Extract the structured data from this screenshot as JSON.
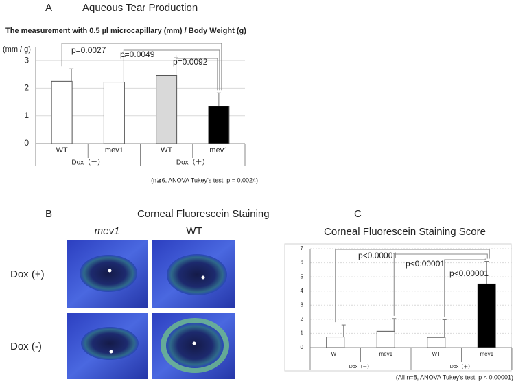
{
  "chart_data": [
    {
      "type": "bar",
      "panel": "A",
      "title": "Aqueous Tear Production",
      "subtitle": "The measurement with 0.5 µl microcapillary (mm) / Body Weight (g)",
      "y_label": "(mm / g)",
      "categories": [
        "WT",
        "mev1",
        "WT",
        "mev1"
      ],
      "groups": [
        "Dox（－）",
        "Dox（＋）"
      ],
      "values": [
        2.25,
        2.22,
        2.47,
        1.35
      ],
      "errors": [
        0.45,
        0.92,
        0.63,
        0.48
      ],
      "colors": [
        "#ffffff",
        "#ffffff",
        "#d9d9d9",
        "#000000"
      ],
      "ylim": [
        0,
        3.5
      ],
      "yticks": [
        0,
        1,
        2,
        3
      ],
      "grid": true,
      "annotations": [
        "p=0.0027",
        "p=0.0049",
        "p=0.0092"
      ],
      "footnote": "(n≧6, ANOVA Tukey's test, p = 0.0024)"
    },
    {
      "type": "bar",
      "panel": "C",
      "title": "Corneal Fluorescein Staining Score",
      "categories": [
        "WT",
        "mev1",
        "WT",
        "mev1"
      ],
      "groups": [
        "Dox（－）",
        "Dox（＋）"
      ],
      "values": [
        0.75,
        1.15,
        0.72,
        4.5
      ],
      "errors": [
        0.85,
        0.9,
        1.25,
        1.6
      ],
      "colors": [
        "#ffffff",
        "#ffffff",
        "#ffffff",
        "#000000"
      ],
      "ylim": [
        0,
        7
      ],
      "yticks": [
        0,
        1,
        2,
        3,
        4,
        5,
        6,
        7
      ],
      "grid": true,
      "annotations": [
        "p<0.00001",
        "p<0.00001",
        "p<0.00001"
      ],
      "footnote": "(All n=8, ANOVA Tukey's test, p < 0.00001)"
    }
  ],
  "photo_panel": {
    "panel": "B",
    "title": "Corneal Fluorescein Staining",
    "columns": [
      "mev1",
      "WT"
    ],
    "rows": [
      "Dox (+)",
      "Dox (-)"
    ]
  }
}
